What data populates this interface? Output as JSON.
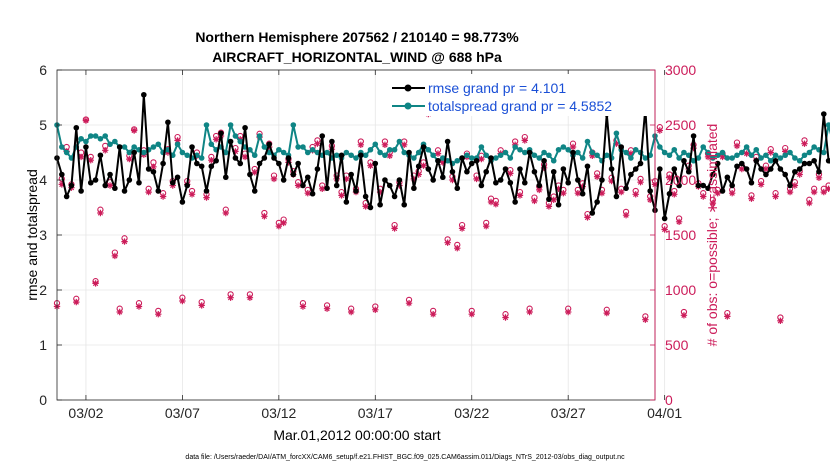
{
  "colors": {
    "rmse": "#000000",
    "spread": "#0f8585",
    "obs": "#cc1c5a",
    "legend_text": "#1a4fd6",
    "grid": "#e6e6e6"
  },
  "chart_data": {
    "type": "line",
    "title_line1": "Northern Hemisphere 207562 / 210140 = 98.773%",
    "title_line2": "AIRCRAFT_HORIZONTAL_WIND @ 688 hPa",
    "xlabel": "Mar.01,2012 00:00:00 start",
    "ylabel_left": "rmse and totalspread",
    "ylabel_right": "# of obs: o=possible; ∗=assimilated",
    "footnote": "data file: /Users/raeder/DAI/ATM_forcXX/CAM6_setup/f.e21.FHIST_BGC.f09_025.CAM6assim.011/Diags_NTrS_2012-03/obs_diag_output.nc",
    "xlim_days": [
      0.5,
      31.5
    ],
    "ylim_left": [
      0,
      6
    ],
    "ylim_right": [
      0,
      3000
    ],
    "x_ticks": [
      {
        "day": 2,
        "label": "03/02"
      },
      {
        "day": 7,
        "label": "03/07"
      },
      {
        "day": 12,
        "label": "03/12"
      },
      {
        "day": 17,
        "label": "03/17"
      },
      {
        "day": 22,
        "label": "03/22"
      },
      {
        "day": 27,
        "label": "03/27"
      },
      {
        "day": 32,
        "label": "04/01"
      }
    ],
    "y_ticks_left": [
      0,
      1,
      2,
      3,
      4,
      5,
      6
    ],
    "y_ticks_right": [
      0,
      500,
      1000,
      1500,
      2000,
      2500,
      3000
    ],
    "legend": {
      "position": "top-right",
      "rmse_label": "rmse grand pr = 4.101",
      "spread_label": "totalspread grand pr = 4.5852"
    },
    "start_day": 0.5,
    "step_days": 0.25,
    "series": [
      {
        "name": "rmse",
        "axis": "left",
        "values": [
          4.4,
          4.1,
          3.7,
          3.9,
          4.95,
          3.8,
          4.6,
          3.95,
          4.0,
          4.45,
          3.9,
          4.1,
          3.85,
          4.6,
          3.8,
          4.0,
          4.5,
          3.95,
          5.55,
          4.2,
          4.15,
          3.8,
          4.3,
          5.05,
          3.95,
          4.05,
          3.6,
          3.9,
          4.6,
          4.3,
          4.25,
          3.8,
          4.25,
          4.35,
          4.85,
          4.05,
          4.7,
          4.4,
          4.3,
          4.95,
          4.1,
          3.8,
          4.3,
          4.4,
          4.65,
          4.4,
          4.3,
          4.0,
          4.4,
          4.1,
          4.3,
          3.9,
          4.05,
          3.75,
          4.2,
          4.8,
          3.85,
          4.7,
          3.9,
          4.45,
          3.6,
          4.1,
          3.8,
          4.45,
          3.7,
          3.5,
          4.3,
          3.55,
          4.0,
          3.9,
          3.7,
          4.0,
          3.55,
          4.5,
          3.85,
          4.25,
          4.6,
          4.2,
          4.0,
          4.35,
          4.05,
          4.7,
          4.15,
          3.85,
          4.4,
          4.15,
          4.3,
          4.35,
          3.9,
          4.15,
          4.4,
          3.95,
          4.0,
          4.2,
          3.95,
          3.6,
          4.2,
          3.95,
          4.5,
          4.15,
          3.9,
          4.35,
          3.65,
          4.15,
          3.55,
          4.2,
          3.95,
          4.5,
          4.0,
          3.75,
          4.25,
          3.4,
          3.6,
          4.0,
          5.2,
          4.2,
          3.7,
          4.6,
          3.85,
          4.1,
          4.2,
          4.3,
          5.3,
          3.8,
          3.45,
          4.2,
          3.3,
          3.75,
          4.2,
          3.9,
          4.35,
          4.15,
          4.8,
          3.9,
          3.9,
          3.85,
          4.1,
          4.3,
          3.8,
          4.05,
          3.9,
          4.25,
          4.3,
          4.2,
          3.95,
          4.35,
          4.2,
          4.1,
          4.2,
          4.35,
          4.2,
          4.1,
          3.9,
          4.15,
          4.2,
          4.3,
          4.3,
          4.35,
          4.15,
          5.2,
          4.35,
          4.25,
          4.2,
          4.1
        ]
      },
      {
        "name": "totalspread",
        "axis": "left",
        "values": [
          5.0,
          4.6,
          4.5,
          4.4,
          4.6,
          4.75,
          4.7,
          4.8,
          4.8,
          4.75,
          4.8,
          4.65,
          4.7,
          4.6,
          4.6,
          4.5,
          4.6,
          4.55,
          4.5,
          4.55,
          4.6,
          4.65,
          4.5,
          4.55,
          4.45,
          4.65,
          4.5,
          4.45,
          4.4,
          4.45,
          4.4,
          5.0,
          4.65,
          4.55,
          4.6,
          4.5,
          5.0,
          4.8,
          4.7,
          4.6,
          4.55,
          4.45,
          4.8,
          4.6,
          4.5,
          4.45,
          4.55,
          4.5,
          4.45,
          5.0,
          4.6,
          4.6,
          4.5,
          4.55,
          4.5,
          4.45,
          4.5,
          4.4,
          4.45,
          4.4,
          4.5,
          4.45,
          4.4,
          4.5,
          4.45,
          4.55,
          4.65,
          4.5,
          4.45,
          4.55,
          4.55,
          4.7,
          4.5,
          4.45,
          4.4,
          4.5,
          4.65,
          4.55,
          4.45,
          4.35,
          4.4,
          4.35,
          4.3,
          4.35,
          4.4,
          4.45,
          4.4,
          4.4,
          4.6,
          4.45,
          4.35,
          4.4,
          4.45,
          4.5,
          4.4,
          4.6,
          4.55,
          4.5,
          4.55,
          4.45,
          4.4,
          4.5,
          4.45,
          4.35,
          4.55,
          4.6,
          4.55,
          4.45,
          4.5,
          4.4,
          4.7,
          4.5,
          4.45,
          4.35,
          4.45,
          4.4,
          4.85,
          4.55,
          4.5,
          4.4,
          4.55,
          4.5,
          4.4,
          4.45,
          4.8,
          4.6,
          4.5,
          4.45,
          4.55,
          4.4,
          4.5,
          4.45,
          4.35,
          4.4,
          4.6,
          4.5,
          4.4,
          4.45,
          4.5,
          4.4,
          4.4,
          4.45,
          4.5,
          4.6,
          4.45,
          4.55,
          4.4,
          4.45,
          4.35,
          4.45,
          4.4,
          4.45,
          4.5,
          4.4,
          4.35,
          4.45,
          4.5,
          4.6,
          4.55,
          4.5,
          5.0,
          4.65,
          4.6,
          4.5
        ]
      },
      {
        "name": "obs_assimilated",
        "axis": "right",
        "values": [
          850,
          1960,
          2260,
          1930,
          890,
          2210,
          2540,
          2180,
          1060,
          1700,
          2270,
          1950,
          1310,
          800,
          1440,
          2190,
          2450,
          850,
          2230,
          1890,
          2120,
          780,
          1850,
          2250,
          1950,
          2360,
          900,
          1960,
          1870,
          2220,
          860,
          1840,
          2180,
          2370,
          2400,
          1700,
          930,
          2260,
          2370,
          2210,
          930,
          2070,
          2390,
          1670,
          2300,
          2010,
          1580,
          1610,
          2160,
          2050,
          1950,
          850,
          1880,
          2270,
          2330,
          1920,
          830,
          2280,
          2010,
          1860,
          2010,
          800,
          1890,
          2320,
          1760,
          2130,
          820,
          1890,
          2320,
          2220,
          1560,
          1950,
          2320,
          880,
          2010,
          2050,
          2130,
          2600,
          780,
          2240,
          2160,
          1430,
          2000,
          1380,
          1560,
          2210,
          780,
          2010,
          2190,
          1580,
          1800,
          1780,
          2240,
          750,
          2060,
          2320,
          1860,
          2360,
          800,
          1810,
          1910,
          2110,
          1760,
          1820,
          1920,
          1880,
          800,
          2300,
          1880,
          1940,
          1660,
          2220,
          2030,
          1880,
          790,
          1990,
          2330,
          1890,
          1680,
          2240,
          1870,
          1980,
          730,
          1820,
          1960,
          2450,
          1550,
          2020,
          1870,
          1620,
          770,
          2100,
          2290,
          1940,
          1850,
          2210,
          1790,
          1880,
          2210,
          760,
          1880,
          2310,
          2100,
          2240,
          1830,
          2180,
          1960,
          2100,
          2250,
          1850,
          720,
          2260,
          1890,
          1950,
          2050,
          2330,
          1790,
          1890,
          2020,
          1890,
          1920,
          2130,
          670,
          2120,
          1960,
          2030,
          2140,
          2510,
          790,
          2370,
          2220,
          2350,
          1440,
          2270,
          0
        ]
      },
      {
        "name": "obs_possible",
        "axis": "right",
        "values": [
          880,
          2010,
          2300,
          1960,
          920,
          2250,
          2550,
          2210,
          1080,
          1730,
          2310,
          1980,
          1340,
          830,
          1470,
          2220,
          2460,
          880,
          2270,
          1920,
          2160,
          810,
          1880,
          2280,
          1990,
          2390,
          930,
          1990,
          1900,
          2250,
          890,
          1870,
          2210,
          2400,
          2430,
          1730,
          960,
          2290,
          2400,
          2240,
          960,
          2100,
          2420,
          1700,
          2330,
          2040,
          1610,
          1640,
          2190,
          2080,
          1980,
          880,
          1910,
          2300,
          2360,
          1950,
          860,
          2310,
          2040,
          1890,
          2040,
          830,
          1920,
          2350,
          1790,
          2160,
          850,
          1920,
          2350,
          2250,
          1590,
          1980,
          2350,
          910,
          2040,
          2080,
          2160,
          2610,
          810,
          2270,
          2190,
          1460,
          2030,
          1410,
          1590,
          2240,
          810,
          2040,
          2220,
          1610,
          1830,
          1810,
          2270,
          780,
          2090,
          2350,
          1890,
          2390,
          830,
          1840,
          1940,
          2140,
          1790,
          1850,
          1950,
          1910,
          830,
          2330,
          1910,
          1970,
          1690,
          2250,
          2060,
          1910,
          820,
          2020,
          2360,
          1920,
          1710,
          2270,
          1900,
          2010,
          760,
          1850,
          1990,
          2480,
          1580,
          2050,
          1900,
          1650,
          800,
          2130,
          2320,
          1970,
          1880,
          2240,
          1820,
          1910,
          2240,
          790,
          1910,
          2340,
          2130,
          2270,
          1860,
          2210,
          1990,
          2130,
          2280,
          1880,
          750,
          2290,
          1920,
          1980,
          2080,
          2360,
          1820,
          1920,
          2050,
          1920,
          1950,
          2160,
          700,
          2150,
          1990,
          2060,
          2170,
          2540,
          820,
          2400,
          2250,
          2380,
          1470,
          2300,
          0
        ]
      }
    ]
  }
}
